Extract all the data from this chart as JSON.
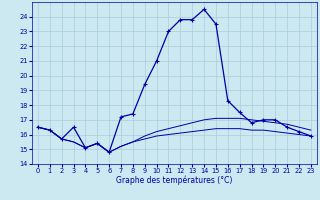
{
  "title": "Graphe des températures (°C)",
  "bg_color": "#cce8f0",
  "grid_color": "#aaccdd",
  "line_color": "#0000aa",
  "xlim": [
    -0.5,
    23.5
  ],
  "ylim": [
    14,
    25
  ],
  "yticks": [
    14,
    15,
    16,
    17,
    18,
    19,
    20,
    21,
    22,
    23,
    24
  ],
  "xticks": [
    0,
    1,
    2,
    3,
    4,
    5,
    6,
    7,
    8,
    9,
    10,
    11,
    12,
    13,
    14,
    15,
    16,
    17,
    18,
    19,
    20,
    21,
    22,
    23
  ],
  "line1_x": [
    0,
    1,
    2,
    3,
    4,
    5,
    6,
    7,
    8,
    9,
    10,
    11,
    12,
    13,
    14,
    15,
    16,
    17,
    18,
    19,
    20,
    21,
    22,
    23
  ],
  "line1_y": [
    16.5,
    16.3,
    15.7,
    16.5,
    15.1,
    15.4,
    14.8,
    17.2,
    17.4,
    19.4,
    21.0,
    23.0,
    23.8,
    23.8,
    24.5,
    23.5,
    18.3,
    17.5,
    16.8,
    17.0,
    17.0,
    16.5,
    16.2,
    15.9
  ],
  "line2_x": [
    0,
    1,
    2,
    3,
    4,
    5,
    6,
    7,
    8,
    9,
    10,
    11,
    12,
    13,
    14,
    15,
    16,
    17,
    18,
    19,
    20,
    21,
    22,
    23
  ],
  "line2_y": [
    16.5,
    16.3,
    15.7,
    15.5,
    15.1,
    15.4,
    14.8,
    15.2,
    15.5,
    15.9,
    16.2,
    16.4,
    16.6,
    16.8,
    17.0,
    17.1,
    17.1,
    17.1,
    17.0,
    16.9,
    16.8,
    16.7,
    16.5,
    16.3
  ],
  "line3_x": [
    0,
    1,
    2,
    3,
    4,
    5,
    6,
    7,
    8,
    9,
    10,
    11,
    12,
    13,
    14,
    15,
    16,
    17,
    18,
    19,
    20,
    21,
    22,
    23
  ],
  "line3_y": [
    16.5,
    16.3,
    15.7,
    15.5,
    15.1,
    15.4,
    14.8,
    15.2,
    15.5,
    15.7,
    15.9,
    16.0,
    16.1,
    16.2,
    16.3,
    16.4,
    16.4,
    16.4,
    16.3,
    16.3,
    16.2,
    16.1,
    16.0,
    15.9
  ],
  "label_fontsize": 5.5,
  "tick_fontsize": 4.8
}
